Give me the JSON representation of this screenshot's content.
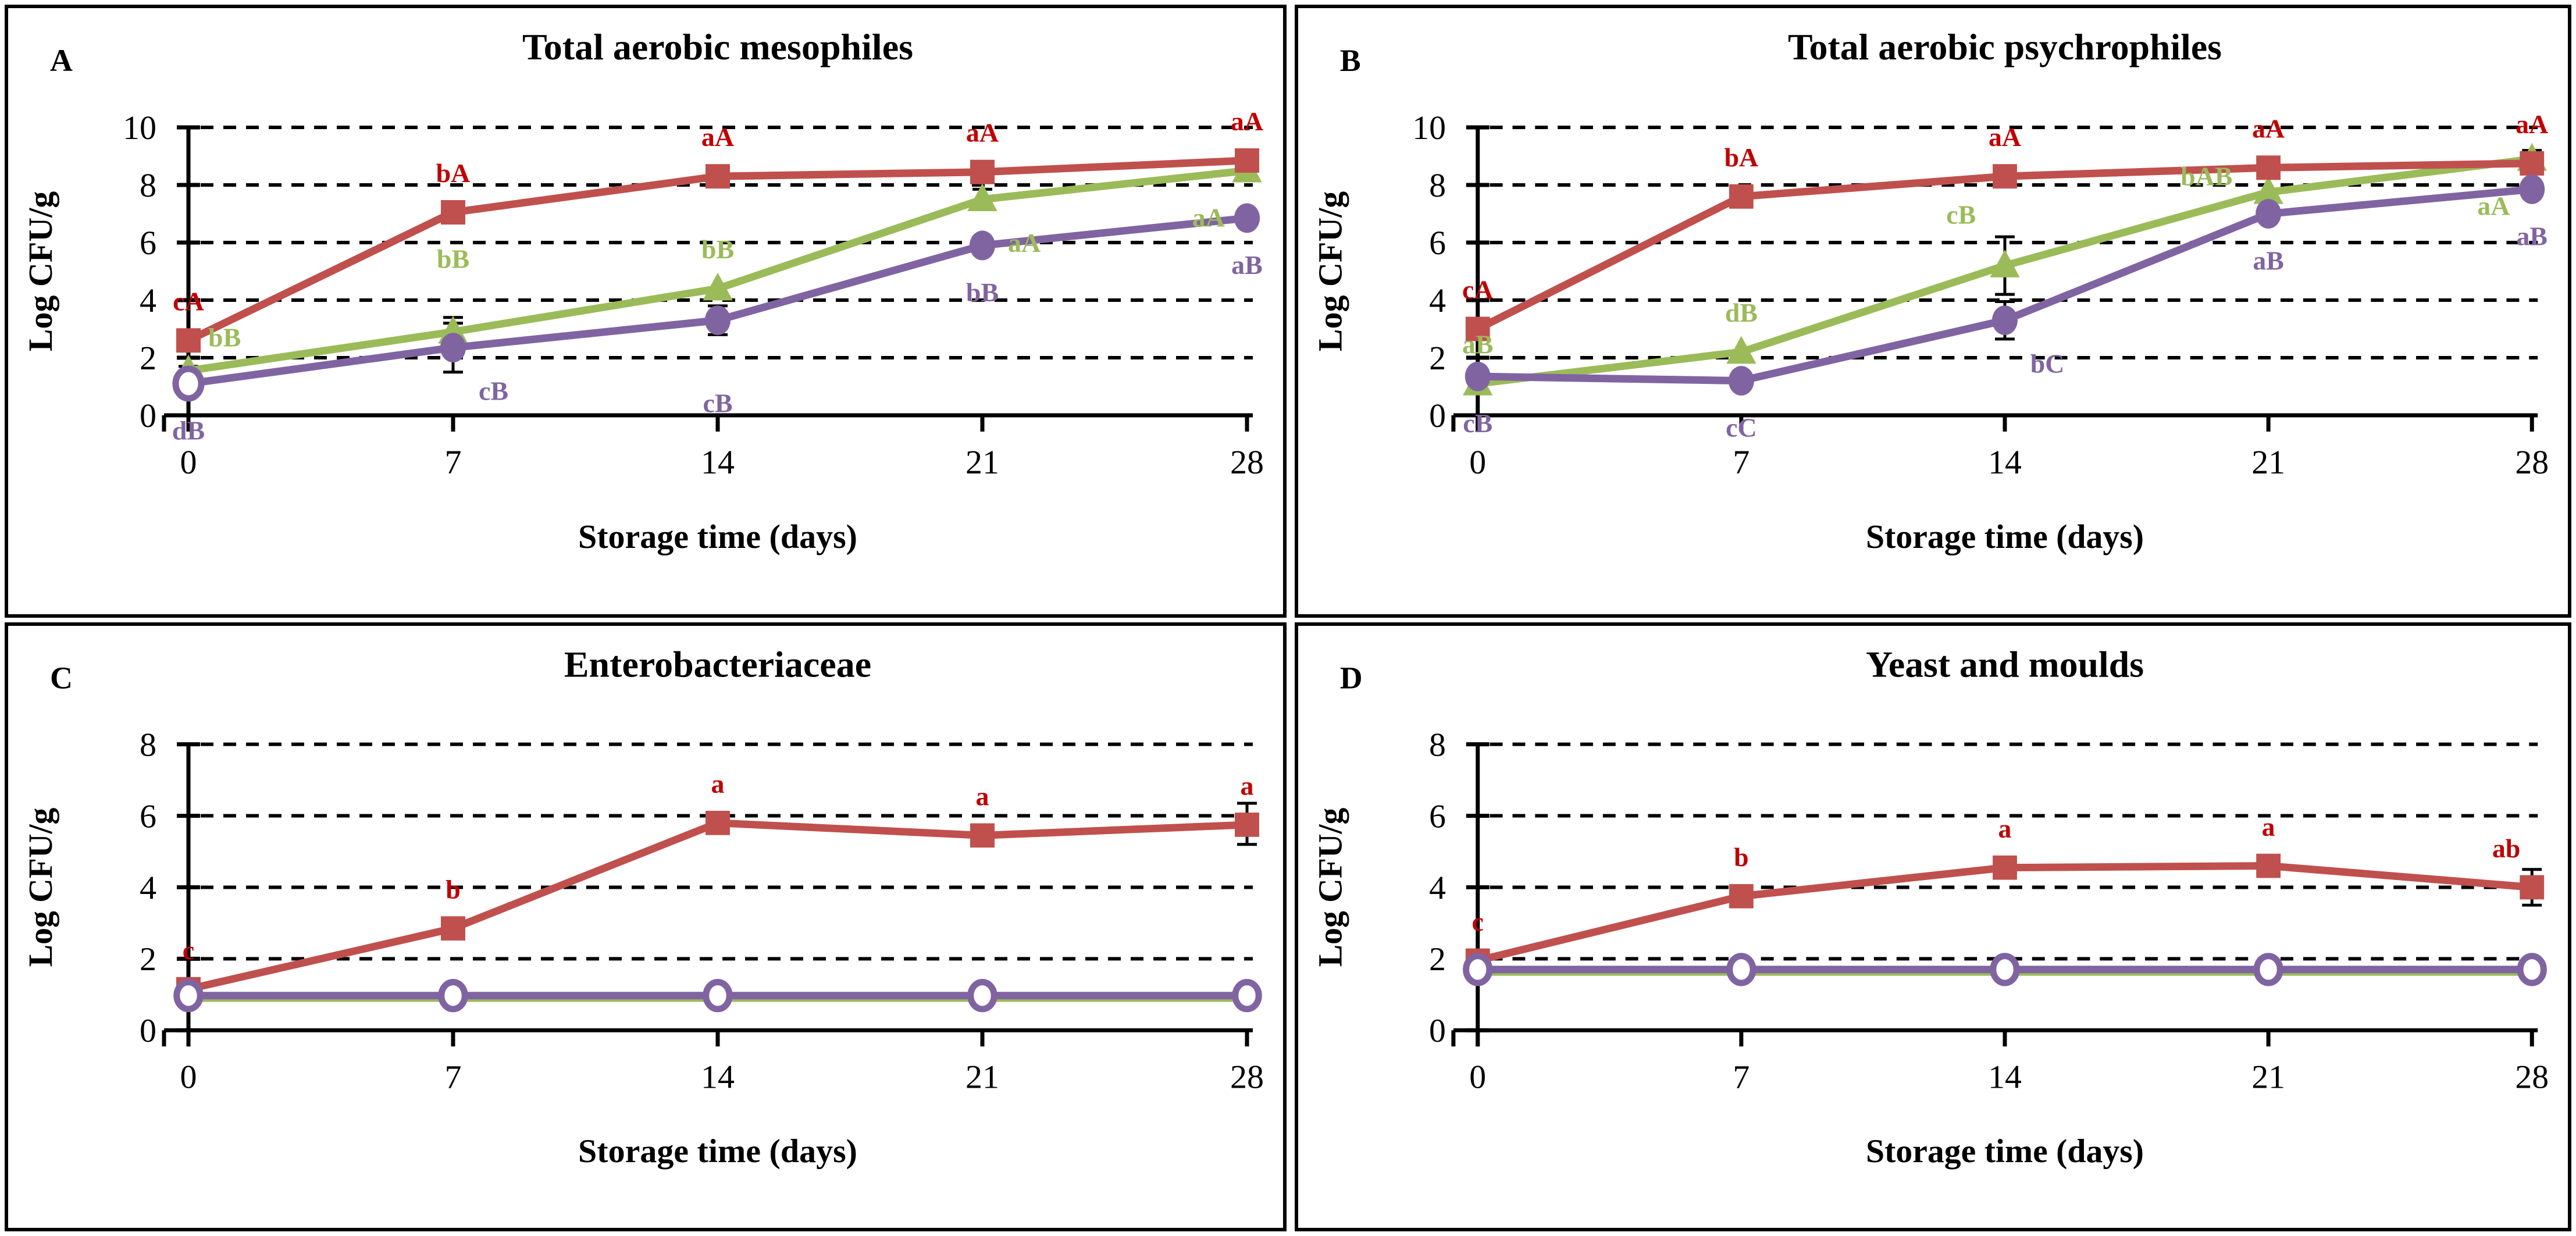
{
  "figure": {
    "description": "Four-panel line chart figure of microbial counts during storage",
    "x_axis_unit": "days",
    "series_legend_visible": false
  },
  "chart_data": [
    {
      "type": "line",
      "letter": "A",
      "title": "Total aerobic mesophiles",
      "ylabel": "Log CFU/g",
      "xlabel": "Storage time (days)",
      "ylim": [
        0,
        10
      ],
      "yticks": [
        0,
        2,
        4,
        6,
        8,
        10
      ],
      "x": [
        0,
        7,
        14,
        21,
        28
      ],
      "grid": "dashed-horizontal",
      "series": [
        {
          "name": "red-squares",
          "color": "#C0504D",
          "label_color": "#C00000",
          "marker": "square",
          "marker_size": 42,
          "open": false,
          "values": [
            2.6,
            7.05,
            8.3,
            8.45,
            8.85
          ],
          "point_labels": [
            "cA",
            "bA",
            "aA",
            "aA",
            "aA"
          ],
          "label_pos": [
            "above",
            "above",
            "above",
            "above",
            "above"
          ]
        },
        {
          "name": "green-triangles",
          "color": "#9BBB59",
          "label_color": "#9BBB59",
          "marker": "triangle",
          "marker_size": 46,
          "open": false,
          "values": [
            1.55,
            2.9,
            4.4,
            7.5,
            8.5
          ],
          "point_labels": [
            "bB",
            "bB",
            "bB",
            "aA",
            "aA"
          ],
          "label_pos": [
            "above-right",
            "above-high",
            "above",
            "below-right",
            "below-left"
          ]
        },
        {
          "name": "purple-circles",
          "color": "#8064A2",
          "label_color": "#8064A2",
          "marker": "circle",
          "marker_size": 24,
          "open": [
            true,
            false,
            false,
            false,
            false
          ],
          "values": [
            1.1,
            2.35,
            3.3,
            5.9,
            6.85
          ],
          "point_labels": [
            "dB",
            "cB",
            "cB",
            "bB",
            "aB"
          ],
          "label_pos": [
            "below",
            "below-right",
            "below-low",
            "below",
            "below"
          ]
        }
      ],
      "error_bars": [
        {
          "s": 1,
          "i": 0,
          "plus": 0.15,
          "minus": 0.15
        },
        {
          "s": 1,
          "i": 1,
          "plus": 0.5,
          "minus": 0.5
        },
        {
          "s": 2,
          "i": 1,
          "plus": 0.85,
          "minus": 0.85
        },
        {
          "s": 2,
          "i": 2,
          "plus": 0.5,
          "minus": 0.5
        },
        {
          "s": 1,
          "i": 3,
          "plus": 0.35,
          "minus": 0.35
        },
        {
          "s": 1,
          "i": 4,
          "plus": 0.3,
          "minus": 0.3
        }
      ]
    },
    {
      "type": "line",
      "letter": "B",
      "title": "Total aerobic psychrophiles",
      "ylabel": "Log CFU/g",
      "xlabel": "Storage time (days)",
      "ylim": [
        0,
        10
      ],
      "yticks": [
        0,
        2,
        4,
        6,
        8,
        10
      ],
      "x": [
        0,
        7,
        14,
        21,
        28
      ],
      "grid": "dashed-horizontal",
      "series": [
        {
          "name": "red-squares",
          "color": "#C0504D",
          "label_color": "#C00000",
          "marker": "square",
          "marker_size": 42,
          "open": false,
          "values": [
            3.0,
            7.6,
            8.3,
            8.6,
            8.75
          ],
          "point_labels": [
            "cA",
            "bA",
            "aA",
            "aA",
            "aA"
          ],
          "label_pos": [
            "above",
            "above",
            "above",
            "above",
            "above"
          ]
        },
        {
          "name": "green-triangles",
          "color": "#9BBB59",
          "label_color": "#9BBB59",
          "marker": "triangle",
          "marker_size": 46,
          "open": false,
          "values": [
            1.1,
            2.2,
            5.2,
            7.75,
            8.9
          ],
          "point_labels": [
            "aB",
            "dB",
            "cB",
            "bAB",
            "aA"
          ],
          "label_pos": [
            "above",
            "above",
            "left-above",
            "left",
            "below-left"
          ]
        },
        {
          "name": "purple-circles",
          "color": "#8064A2",
          "label_color": "#8064A2",
          "marker": "circle",
          "marker_size": 24,
          "open": false,
          "values": [
            1.35,
            1.2,
            3.3,
            7.0,
            7.85
          ],
          "point_labels": [
            "cB",
            "cC",
            "bC",
            "aB",
            "aB"
          ],
          "label_pos": [
            "below",
            "below",
            "below-right",
            "below",
            "below"
          ]
        }
      ],
      "error_bars": [
        {
          "s": 1,
          "i": 0,
          "plus": 0.2,
          "minus": 0.2
        },
        {
          "s": 0,
          "i": 1,
          "plus": 0.15,
          "minus": 0.15
        },
        {
          "s": 2,
          "i": 1,
          "plus": 0.12,
          "minus": 0.12
        },
        {
          "s": 1,
          "i": 2,
          "plus": 1.0,
          "minus": 1.0
        },
        {
          "s": 2,
          "i": 2,
          "plus": 0.65,
          "minus": 0.65
        },
        {
          "s": 0,
          "i": 3,
          "plus": 0.3,
          "minus": 0.3
        },
        {
          "s": 1,
          "i": 4,
          "plus": 0.3,
          "minus": 0.3
        }
      ]
    },
    {
      "type": "line",
      "letter": "C",
      "title": "Enterobacteriaceae",
      "ylabel": "Log CFU/g",
      "xlabel": "Storage time (days)",
      "ylim": [
        0,
        8
      ],
      "yticks": [
        0,
        2,
        4,
        6,
        8
      ],
      "x": [
        0,
        7,
        14,
        21,
        28
      ],
      "grid": "dashed-horizontal",
      "series": [
        {
          "name": "red-squares",
          "color": "#C0504D",
          "label_color": "#C00000",
          "marker": "square",
          "marker_size": 42,
          "open": false,
          "values": [
            1.15,
            2.85,
            5.8,
            5.45,
            5.75
          ],
          "point_labels": [
            "c",
            "b",
            "a",
            "a",
            "a"
          ],
          "label_pos": [
            "above",
            "above",
            "above",
            "above",
            "above"
          ]
        },
        {
          "name": "green-squares",
          "color": "#9BBB59",
          "label_color": "#9BBB59",
          "marker": "square",
          "marker_size": 28,
          "open": false,
          "values": [
            0.9,
            0.9,
            0.9,
            0.9,
            0.9
          ],
          "point_labels": [
            "",
            "",
            "",
            "",
            ""
          ],
          "label_pos": [
            "above",
            "above",
            "above",
            "above",
            "above"
          ]
        },
        {
          "name": "purple-open-circles",
          "color": "#8064A2",
          "label_color": "#8064A2",
          "marker": "circle",
          "marker_size": 22,
          "open": true,
          "values": [
            0.97,
            0.97,
            0.97,
            0.97,
            0.97
          ],
          "point_labels": [
            "",
            "",
            "",
            "",
            ""
          ],
          "label_pos": [
            "below",
            "below",
            "below",
            "below",
            "below"
          ]
        }
      ],
      "error_bars": [
        {
          "s": 0,
          "i": 1,
          "plus": 0.2,
          "minus": 0.2
        },
        {
          "s": 0,
          "i": 2,
          "plus": 0.15,
          "minus": 0.15
        },
        {
          "s": 0,
          "i": 4,
          "plus": 0.6,
          "minus": 0.55
        }
      ]
    },
    {
      "type": "line",
      "letter": "D",
      "title": "Yeast and moulds",
      "ylabel": "Log CFU/g",
      "xlabel": "Storage time (days)",
      "ylim": [
        0,
        8
      ],
      "yticks": [
        0,
        2,
        4,
        6,
        8
      ],
      "x": [
        0,
        7,
        14,
        21,
        28
      ],
      "grid": "dashed-horizontal",
      "series": [
        {
          "name": "red-squares",
          "color": "#C0504D",
          "label_color": "#C00000",
          "marker": "square",
          "marker_size": 42,
          "open": false,
          "values": [
            1.95,
            3.75,
            4.55,
            4.6,
            4.0
          ],
          "point_labels": [
            "c",
            "b",
            "a",
            "a",
            "ab"
          ],
          "label_pos": [
            "above",
            "above",
            "above",
            "above",
            "above-left"
          ]
        },
        {
          "name": "green-squares",
          "color": "#9BBB59",
          "label_color": "#9BBB59",
          "marker": "square",
          "marker_size": 28,
          "open": false,
          "values": [
            1.63,
            1.63,
            1.63,
            1.63,
            1.63
          ],
          "point_labels": [
            "",
            "",
            "",
            "",
            ""
          ],
          "label_pos": [
            "above",
            "above",
            "above",
            "above",
            "above"
          ]
        },
        {
          "name": "purple-open-circles",
          "color": "#8064A2",
          "label_color": "#8064A2",
          "marker": "circle",
          "marker_size": 22,
          "open": true,
          "values": [
            1.7,
            1.7,
            1.7,
            1.7,
            1.7
          ],
          "point_labels": [
            "",
            "",
            "",
            "",
            ""
          ],
          "label_pos": [
            "below",
            "below",
            "below",
            "below",
            "below"
          ]
        }
      ],
      "error_bars": [
        {
          "s": 0,
          "i": 4,
          "plus": 0.5,
          "minus": 0.5
        }
      ]
    }
  ]
}
